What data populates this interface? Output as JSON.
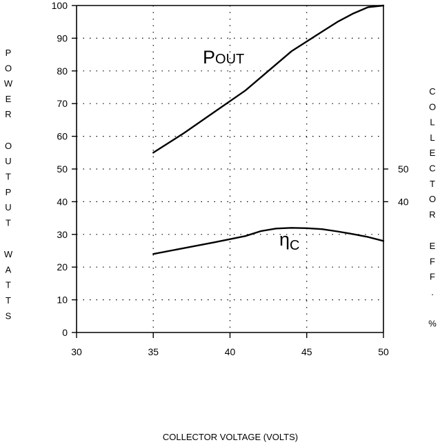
{
  "chart_data": {
    "type": "line",
    "xlabel": "COLLECTOR VOLTAGE (VOLTS)",
    "ylabel": "POWER OUTPUT WATTS",
    "ylabel_right": "COLLECTOR EFF. %",
    "xlim": [
      30,
      50
    ],
    "ylim": [
      0,
      100
    ],
    "y2lim": [
      0,
      100
    ],
    "grid": "dotted",
    "x_ticks": [
      "30",
      "35",
      "40",
      "45",
      "50"
    ],
    "y_ticks": [
      "0",
      "10",
      "20",
      "30",
      "40",
      "50",
      "60",
      "70",
      "80",
      "90",
      "100"
    ],
    "y2_ticks": [
      "40",
      "50"
    ],
    "series": [
      {
        "name": "POUT",
        "label_main": "P",
        "label_sub": "OUT",
        "axis": "left",
        "color": "#000000",
        "x": [
          35,
          37,
          39,
          41,
          42,
          43,
          44,
          45,
          46,
          47,
          48,
          49,
          50
        ],
        "y": [
          55,
          61,
          67.5,
          74,
          78,
          82,
          86,
          89,
          92,
          95,
          97.5,
          99.5,
          100
        ]
      },
      {
        "name": "ηC",
        "label_main": "η",
        "label_sub": "C",
        "axis": "left",
        "color": "#000000",
        "x": [
          35,
          37,
          39,
          41,
          42,
          43,
          44,
          45,
          46,
          47,
          48,
          49,
          50
        ],
        "y": [
          24,
          25.8,
          27.6,
          29.5,
          31,
          31.8,
          32,
          31.9,
          31.6,
          30.9,
          30.1,
          29.2,
          28
        ]
      }
    ]
  }
}
